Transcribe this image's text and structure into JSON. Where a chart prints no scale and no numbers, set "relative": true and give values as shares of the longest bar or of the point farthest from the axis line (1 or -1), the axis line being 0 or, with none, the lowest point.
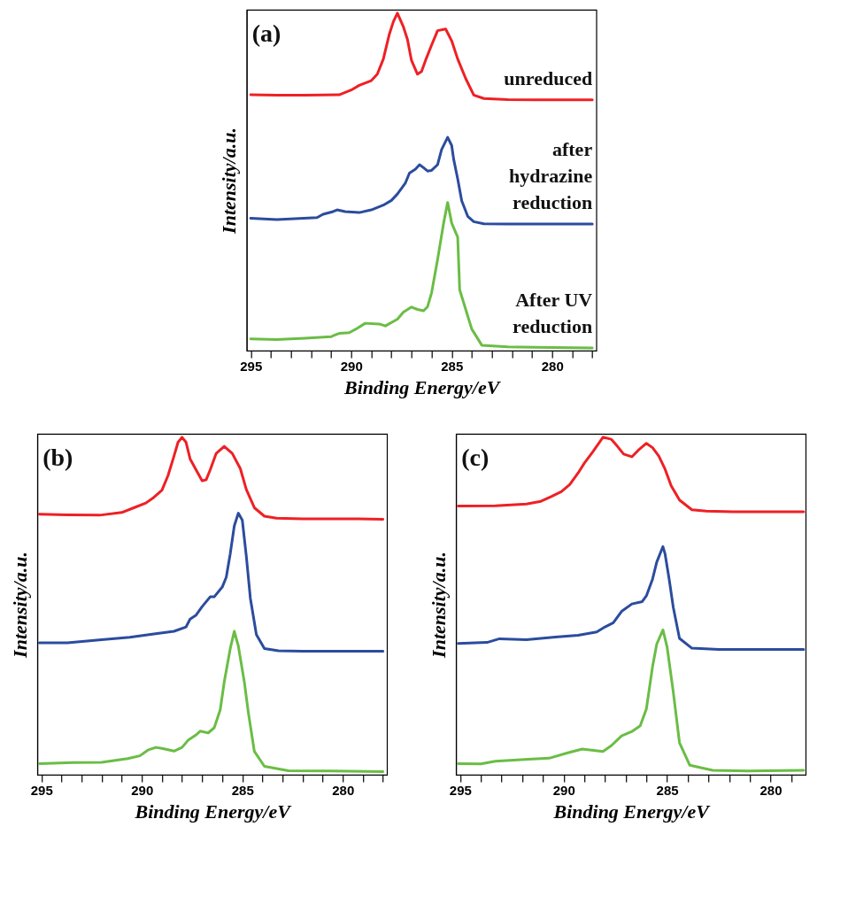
{
  "chart_data": [
    {
      "type": "line",
      "title": "(a)",
      "xlabel": "Binding Energy/eV",
      "ylabel": "Intensity/a.u.",
      "relative": true,
      "tick_labels": "x",
      "xlim": [
        295.2,
        277.8
      ],
      "xticks": [
        295,
        {
          "value": 294,
          "label": null
        },
        {
          "value": 293,
          "label": null
        },
        {
          "value": 292,
          "label": null
        },
        {
          "value": 291,
          "label": null
        },
        290,
        {
          "value": 289,
          "label": null
        },
        {
          "value": 288,
          "label": null
        },
        {
          "value": 287,
          "label": null
        },
        {
          "value": 286,
          "label": null
        },
        285,
        {
          "value": 284,
          "label": null
        },
        {
          "value": 283,
          "label": null
        },
        {
          "value": 282,
          "label": null
        },
        {
          "value": 281,
          "label": null
        },
        280,
        {
          "value": 279,
          "label": null
        },
        {
          "value": 278,
          "label": null
        }
      ],
      "series": [
        {
          "name": "unreduced",
          "color": "#ee2024",
          "x": [
            295.0,
            293.7,
            292.3,
            290.6,
            290.0,
            289.6,
            289.0,
            288.7,
            288.4,
            288.1,
            287.9,
            287.7,
            287.4,
            287.2,
            287.0,
            286.7,
            286.5,
            286.3,
            286.0,
            285.7,
            285.3,
            285.0,
            284.7,
            284.3,
            283.9,
            283.4,
            282.2,
            280.8,
            279.4,
            278.0
          ],
          "values": [
            0.758,
            0.757,
            0.757,
            0.758,
            0.772,
            0.786,
            0.8,
            0.819,
            0.864,
            0.938,
            0.975,
            1.0,
            0.959,
            0.922,
            0.86,
            0.819,
            0.827,
            0.86,
            0.905,
            0.948,
            0.953,
            0.918,
            0.864,
            0.806,
            0.757,
            0.747,
            0.744,
            0.743,
            0.743,
            0.743
          ]
        },
        {
          "name": "after\nhydrazine\nreduction",
          "color": "#2b4c9e",
          "x": [
            295.0,
            293.7,
            291.7,
            291.4,
            290.9,
            290.7,
            290.3,
            289.6,
            289.0,
            288.4,
            288.0,
            287.7,
            287.3,
            287.1,
            286.8,
            286.6,
            286.4,
            286.2,
            286.0,
            285.7,
            285.5,
            285.2,
            285.0,
            284.9,
            284.7,
            284.5,
            284.2,
            283.9,
            283.4,
            282.2,
            280.8,
            278.0
          ],
          "values": [
            0.392,
            0.388,
            0.394,
            0.404,
            0.412,
            0.417,
            0.412,
            0.409,
            0.417,
            0.431,
            0.445,
            0.464,
            0.497,
            0.526,
            0.538,
            0.551,
            0.542,
            0.532,
            0.534,
            0.551,
            0.596,
            0.632,
            0.608,
            0.567,
            0.509,
            0.444,
            0.398,
            0.382,
            0.376,
            0.375,
            0.375,
            0.375
          ]
        },
        {
          "name": "After UV\nreduction",
          "color": "#6abd45",
          "x": [
            295.0,
            293.7,
            292.3,
            291.0,
            290.9,
            290.6,
            290.1,
            289.7,
            289.3,
            288.6,
            288.3,
            287.7,
            287.4,
            287.0,
            286.7,
            286.4,
            286.2,
            286.0,
            285.7,
            285.4,
            285.2,
            285.0,
            284.7,
            284.6,
            284.3,
            284.0,
            283.5,
            282.2,
            280.8,
            278.0
          ],
          "values": [
            0.035,
            0.033,
            0.037,
            0.041,
            0.044,
            0.051,
            0.053,
            0.066,
            0.081,
            0.079,
            0.073,
            0.093,
            0.114,
            0.129,
            0.122,
            0.118,
            0.13,
            0.171,
            0.27,
            0.378,
            0.439,
            0.378,
            0.336,
            0.18,
            0.122,
            0.064,
            0.016,
            0.011,
            0.01,
            0.008
          ]
        }
      ]
    },
    {
      "type": "line",
      "title": "(b)",
      "xlabel": "Binding Energy/eV",
      "ylabel": "Intensity/a.u.",
      "relative": true,
      "tick_labels": "x",
      "xlim": [
        295.2,
        277.8
      ],
      "xticks": [
        295,
        {
          "value": 294,
          "label": null
        },
        {
          "value": 293,
          "label": null
        },
        {
          "value": 292,
          "label": null
        },
        {
          "value": 291,
          "label": null
        },
        290,
        {
          "value": 289,
          "label": null
        },
        {
          "value": 288,
          "label": null
        },
        {
          "value": 287,
          "label": null
        },
        {
          "value": 286,
          "label": null
        },
        285,
        {
          "value": 284,
          "label": null
        },
        {
          "value": 283,
          "label": null
        },
        {
          "value": 282,
          "label": null
        },
        {
          "value": 281,
          "label": null
        },
        280,
        {
          "value": 279,
          "label": null
        },
        {
          "value": 278,
          "label": null
        }
      ],
      "series": [
        {
          "color": "#ee2024",
          "x": [
            295.1,
            293.7,
            292.1,
            291.0,
            290.4,
            289.8,
            289.4,
            289.0,
            288.7,
            288.4,
            288.2,
            288.0,
            287.8,
            287.6,
            287.3,
            287.0,
            286.8,
            286.6,
            286.3,
            285.9,
            285.5,
            285.1,
            284.8,
            284.4,
            283.9,
            283.3,
            282.0,
            280.6,
            279.2,
            278.0
          ],
          "values": [
            0.772,
            0.77,
            0.769,
            0.777,
            0.791,
            0.805,
            0.822,
            0.843,
            0.886,
            0.944,
            0.985,
            1.0,
            0.985,
            0.936,
            0.903,
            0.871,
            0.874,
            0.903,
            0.952,
            0.973,
            0.952,
            0.907,
            0.845,
            0.791,
            0.766,
            0.76,
            0.758,
            0.758,
            0.758,
            0.757
          ]
        },
        {
          "color": "#2b4c9e",
          "x": [
            295.1,
            293.7,
            292.0,
            290.6,
            289.4,
            288.4,
            287.8,
            287.6,
            287.3,
            287.0,
            286.6,
            286.4,
            286.0,
            285.8,
            285.6,
            285.4,
            285.2,
            285.0,
            284.8,
            284.6,
            284.3,
            283.9,
            283.2,
            282.0,
            280.6,
            278.0
          ],
          "values": [
            0.391,
            0.391,
            0.4,
            0.407,
            0.417,
            0.425,
            0.438,
            0.461,
            0.473,
            0.498,
            0.527,
            0.527,
            0.556,
            0.585,
            0.655,
            0.737,
            0.775,
            0.754,
            0.647,
            0.523,
            0.415,
            0.374,
            0.367,
            0.366,
            0.366,
            0.366
          ]
        },
        {
          "color": "#6abd45",
          "x": [
            295.1,
            293.4,
            292.0,
            290.7,
            290.1,
            289.7,
            289.3,
            289.0,
            288.4,
            288.0,
            287.7,
            287.3,
            287.1,
            286.7,
            286.4,
            286.1,
            285.9,
            285.6,
            285.4,
            285.2,
            284.9,
            284.7,
            284.4,
            283.9,
            282.7,
            280.6,
            278.0
          ],
          "values": [
            0.033,
            0.036,
            0.037,
            0.048,
            0.056,
            0.073,
            0.081,
            0.078,
            0.07,
            0.081,
            0.102,
            0.118,
            0.129,
            0.124,
            0.139,
            0.192,
            0.275,
            0.374,
            0.425,
            0.382,
            0.275,
            0.184,
            0.069,
            0.025,
            0.012,
            0.011,
            0.009
          ]
        }
      ]
    },
    {
      "type": "line",
      "title": "(c)",
      "xlabel": "Binding Energy/eV",
      "ylabel": "Intensity/a.u.",
      "relative": true,
      "tick_labels": "x",
      "xlim": [
        295.2,
        278.3
      ],
      "xticks": [
        295,
        {
          "value": 294,
          "label": null
        },
        {
          "value": 293,
          "label": null
        },
        {
          "value": 292,
          "label": null
        },
        {
          "value": 291,
          "label": null
        },
        290,
        {
          "value": 289,
          "label": null
        },
        {
          "value": 288,
          "label": null
        },
        {
          "value": 287,
          "label": null
        },
        {
          "value": 286,
          "label": null
        },
        285,
        {
          "value": 284,
          "label": null
        },
        {
          "value": 283,
          "label": null
        },
        {
          "value": 282,
          "label": null
        },
        {
          "value": 281,
          "label": null
        },
        280,
        {
          "value": 279,
          "label": null
        }
      ],
      "series": [
        {
          "color": "#ee2024",
          "x": [
            295.1,
            293.3,
            291.8,
            291.1,
            290.6,
            290.1,
            289.7,
            289.3,
            289.0,
            288.6,
            288.3,
            288.1,
            287.7,
            287.4,
            287.1,
            286.7,
            286.4,
            286.0,
            285.7,
            285.4,
            285.1,
            284.8,
            284.4,
            283.8,
            283.1,
            281.8,
            280.4,
            278.4
          ],
          "values": [
            0.796,
            0.797,
            0.802,
            0.81,
            0.824,
            0.839,
            0.86,
            0.894,
            0.923,
            0.956,
            0.982,
            1.0,
            0.994,
            0.973,
            0.95,
            0.942,
            0.961,
            0.982,
            0.969,
            0.944,
            0.906,
            0.856,
            0.814,
            0.785,
            0.781,
            0.779,
            0.779,
            0.779
          ]
        },
        {
          "color": "#2b4c9e",
          "x": [
            295.1,
            293.7,
            293.1,
            291.8,
            290.4,
            289.3,
            288.4,
            288.0,
            287.6,
            287.2,
            286.7,
            286.2,
            286.0,
            285.7,
            285.5,
            285.2,
            285.1,
            284.9,
            284.7,
            284.4,
            283.8,
            282.5,
            280.4,
            278.4
          ],
          "values": [
            0.389,
            0.392,
            0.403,
            0.4,
            0.408,
            0.413,
            0.423,
            0.438,
            0.45,
            0.484,
            0.506,
            0.513,
            0.53,
            0.58,
            0.63,
            0.676,
            0.655,
            0.58,
            0.496,
            0.404,
            0.375,
            0.371,
            0.371,
            0.371
          ]
        },
        {
          "color": "#6abd45",
          "x": [
            295.1,
            294.0,
            293.3,
            291.7,
            290.7,
            289.8,
            289.1,
            288.1,
            287.7,
            287.2,
            286.7,
            286.3,
            286.0,
            285.7,
            285.5,
            285.2,
            285.0,
            284.7,
            284.4,
            283.9,
            282.8,
            281.1,
            278.4
          ],
          "values": [
            0.033,
            0.032,
            0.04,
            0.046,
            0.049,
            0.065,
            0.076,
            0.069,
            0.086,
            0.115,
            0.128,
            0.145,
            0.195,
            0.321,
            0.387,
            0.429,
            0.379,
            0.245,
            0.095,
            0.028,
            0.013,
            0.011,
            0.013
          ]
        }
      ]
    }
  ]
}
